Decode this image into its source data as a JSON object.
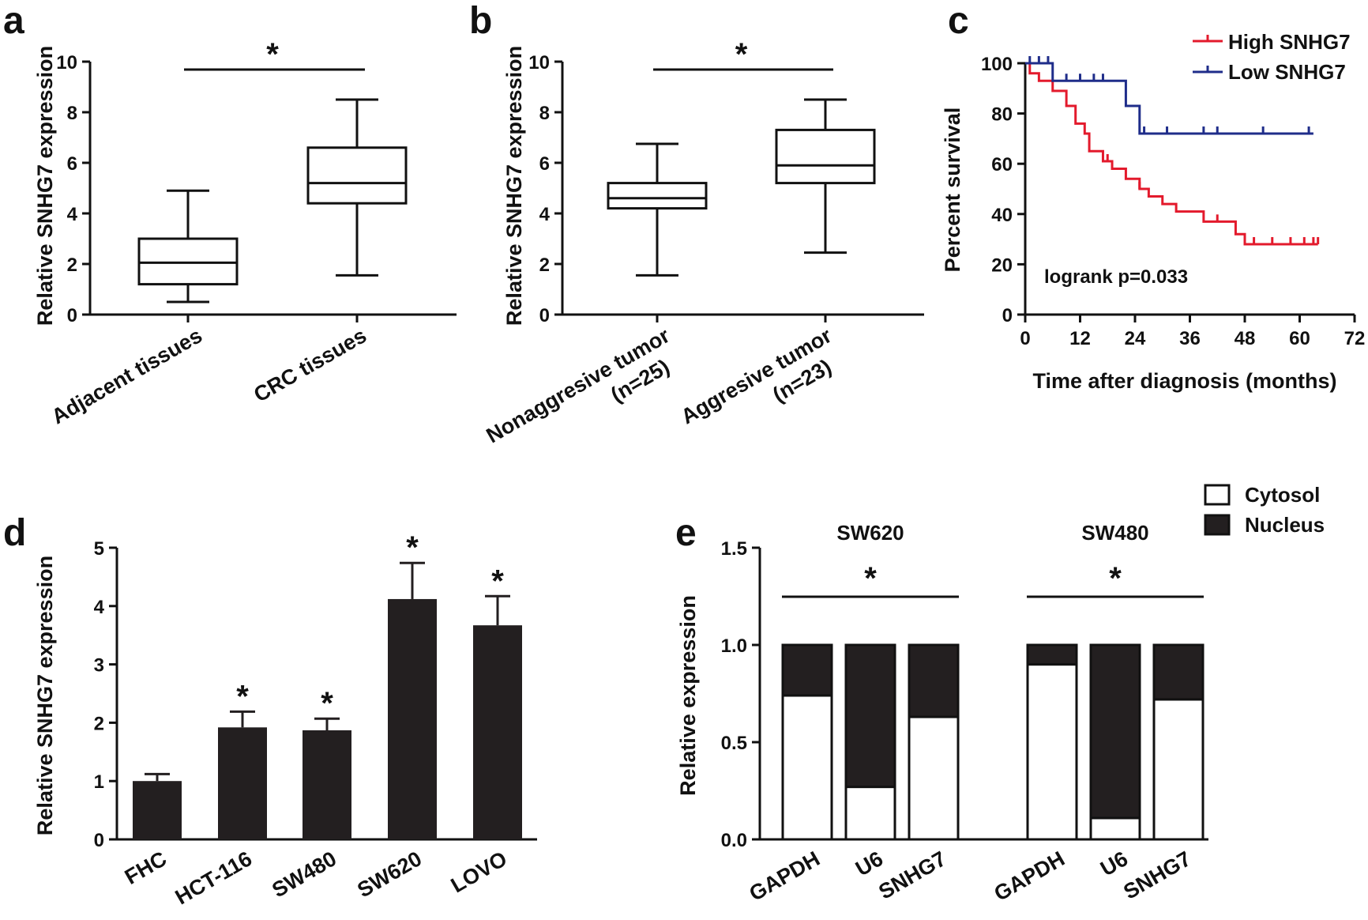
{
  "chart_data": [
    {
      "panel": "a",
      "type": "box",
      "ylabel": "Relative SNHG7 expression",
      "ylim": [
        0,
        10
      ],
      "yticks": [
        "0",
        "2",
        "4",
        "6",
        "8",
        "10"
      ],
      "categories": [
        "Adjacent tissues",
        "CRC tissues"
      ],
      "boxes": [
        {
          "min": 0.5,
          "q1": 1.2,
          "median": 2.05,
          "q3": 3.0,
          "max": 4.9
        },
        {
          "min": 1.55,
          "q1": 4.4,
          "median": 5.2,
          "q3": 6.6,
          "max": 8.5
        }
      ],
      "significance": "*"
    },
    {
      "panel": "b",
      "type": "box",
      "ylabel": "Relative SNHG7 expression",
      "ylim": [
        0,
        10
      ],
      "yticks": [
        "0",
        "2",
        "4",
        "6",
        "8",
        "10"
      ],
      "categories": [
        [
          "Nonaggresive tumor",
          "(n=25)"
        ],
        [
          "Aggresive tumor",
          "(n=23)"
        ]
      ],
      "boxes": [
        {
          "min": 1.55,
          "q1": 4.2,
          "median": 4.6,
          "q3": 5.2,
          "max": 6.75
        },
        {
          "min": 2.45,
          "q1": 5.2,
          "median": 5.9,
          "q3": 7.3,
          "max": 8.5
        }
      ],
      "significance": "*"
    },
    {
      "panel": "c",
      "type": "survival",
      "ylabel": "Percent survival",
      "xlabel": "Time after diagnosis (months)",
      "xlim": [
        0,
        72
      ],
      "ylim": [
        0,
        100
      ],
      "xticks": [
        "0",
        "12",
        "24",
        "36",
        "48",
        "60",
        "72"
      ],
      "yticks": [
        "0",
        "20",
        "40",
        "60",
        "80",
        "100"
      ],
      "annotation": "logrank p=0.033",
      "series": [
        {
          "name": "High SNHG7",
          "color": "#e31a2c",
          "steps": [
            [
              0,
              100
            ],
            [
              1,
              96
            ],
            [
              3,
              93
            ],
            [
              6,
              89
            ],
            [
              9,
              83
            ],
            [
              11,
              76
            ],
            [
              13,
              72
            ],
            [
              14,
              65
            ],
            [
              17,
              61
            ],
            [
              19,
              58
            ],
            [
              22,
              54
            ],
            [
              25,
              50
            ],
            [
              27,
              47
            ],
            [
              30,
              44
            ],
            [
              33,
              41
            ],
            [
              39,
              37
            ],
            [
              46,
              32
            ],
            [
              48,
              28
            ],
            [
              64,
              28
            ]
          ],
          "censor_x": [
            18,
            25,
            42,
            50,
            54,
            58,
            61,
            63,
            64
          ]
        },
        {
          "name": "Low SNHG7",
          "color": "#1f2d8a",
          "steps": [
            [
              0,
              100
            ],
            [
              6,
              93
            ],
            [
              20,
              93
            ],
            [
              22,
              83
            ],
            [
              25,
              83
            ],
            [
              25,
              72
            ],
            [
              63,
              72
            ]
          ],
          "censor_x": [
            1,
            3,
            5,
            9,
            12,
            15,
            17,
            26,
            31,
            39,
            42,
            52,
            62
          ]
        }
      ]
    },
    {
      "panel": "d",
      "type": "bar",
      "ylabel": "Relative SNHG7 expression",
      "ylim": [
        0,
        5
      ],
      "yticks": [
        "0",
        "1",
        "2",
        "3",
        "4",
        "5"
      ],
      "categories": [
        "FHC",
        "HCT-116",
        "SW480",
        "SW620",
        "LOVO"
      ],
      "values": [
        1.0,
        1.92,
        1.87,
        4.12,
        3.67
      ],
      "errors": [
        0.12,
        0.27,
        0.2,
        0.62,
        0.5
      ],
      "significance": [
        "",
        "*",
        "*",
        "*",
        "*"
      ],
      "color": "#231f20"
    },
    {
      "panel": "e",
      "type": "stacked_bar",
      "ylabel": "Relative expression",
      "ylim": [
        0,
        1.5
      ],
      "yticks": [
        "0.0",
        "0.5",
        "1.0",
        "1.5"
      ],
      "legend": [
        {
          "name": "Cytosol",
          "color": "#ffffff"
        },
        {
          "name": "Nucleus",
          "color": "#231f20"
        }
      ],
      "groups": [
        {
          "title": "SW620",
          "significance": "*",
          "categories": [
            "GAPDH",
            "U6",
            "SNHG7"
          ],
          "cytosol": [
            0.74,
            0.27,
            0.63
          ],
          "nucleus": [
            0.26,
            0.73,
            0.37
          ]
        },
        {
          "title": "SW480",
          "significance": "*",
          "categories": [
            "GAPDH",
            "U6",
            "SNHG7"
          ],
          "cytosol": [
            0.9,
            0.11,
            0.72
          ],
          "nucleus": [
            0.1,
            0.89,
            0.28
          ]
        }
      ]
    }
  ]
}
